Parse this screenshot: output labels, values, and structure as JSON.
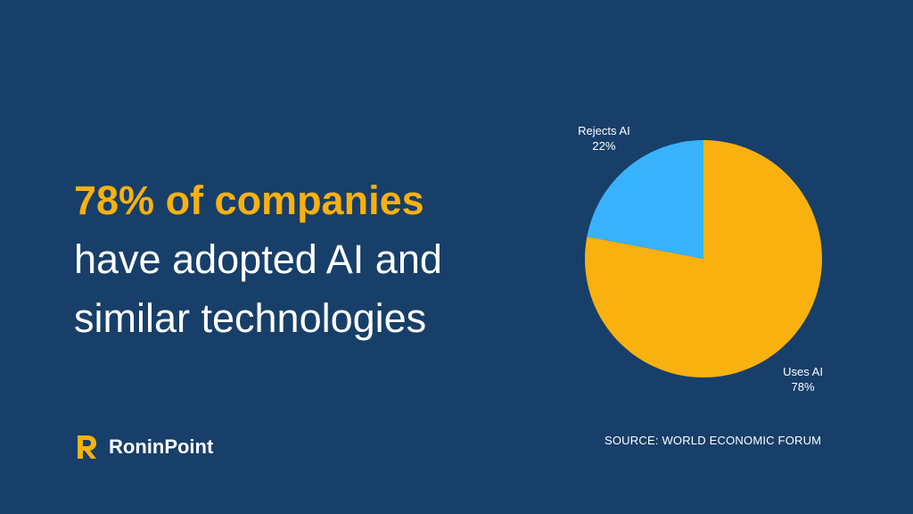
{
  "headline": {
    "accent": "78% of companies",
    "line2": "have adopted AI and",
    "line3": "similar technologies"
  },
  "chart_data": {
    "type": "pie",
    "categories": [
      "Uses AI",
      "Rejects AI"
    ],
    "values": [
      78,
      22
    ],
    "value_labels": [
      "78%",
      "22%"
    ],
    "colors": [
      "#f9b10f",
      "#39b2fd"
    ],
    "start_angle_deg": 0,
    "direction": "clockwise"
  },
  "source": "SOURCE: WORLD ECONOMIC FORUM",
  "brand": {
    "name": "RoninPoint",
    "logo_icon": "ronin-r-logo-icon",
    "accent_color": "#f9b10f"
  },
  "colors": {
    "background": "#173f6a",
    "text": "#ffffff",
    "accent": "#f9b10f"
  }
}
